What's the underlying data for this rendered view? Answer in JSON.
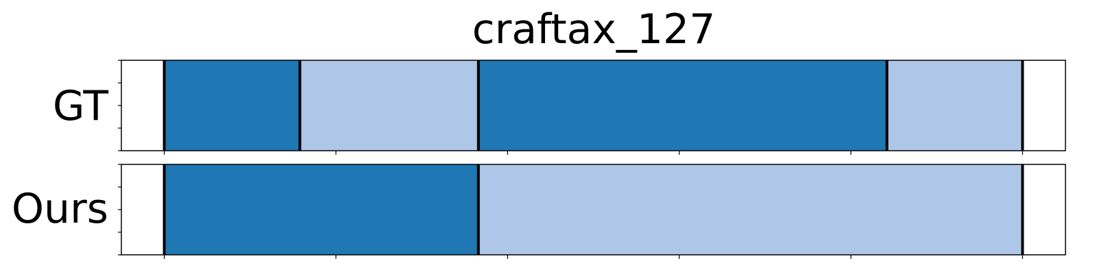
{
  "chart_data": {
    "type": "timeline-segments",
    "title": "craftax_127",
    "x_range": [
      -0.25,
      5.25
    ],
    "x_ticks": [
      0,
      1,
      2,
      3,
      4,
      5
    ],
    "colors": {
      "dark": "#1f77b4",
      "light": "#aec7e8",
      "boundary": "#000000"
    },
    "rows": [
      {
        "label": "GT",
        "segments": [
          {
            "start": 0.0,
            "end": 0.79,
            "color": "dark"
          },
          {
            "start": 0.79,
            "end": 1.83,
            "color": "light"
          },
          {
            "start": 1.83,
            "end": 4.21,
            "color": "dark"
          },
          {
            "start": 4.21,
            "end": 5.0,
            "color": "light"
          }
        ],
        "boundaries": [
          0.0,
          0.79,
          1.83,
          4.21,
          5.0
        ]
      },
      {
        "label": "Ours",
        "segments": [
          {
            "start": 0.0,
            "end": 1.83,
            "color": "dark"
          },
          {
            "start": 1.83,
            "end": 5.0,
            "color": "light"
          }
        ],
        "boundaries": [
          0.0,
          1.83,
          5.0
        ]
      }
    ]
  }
}
